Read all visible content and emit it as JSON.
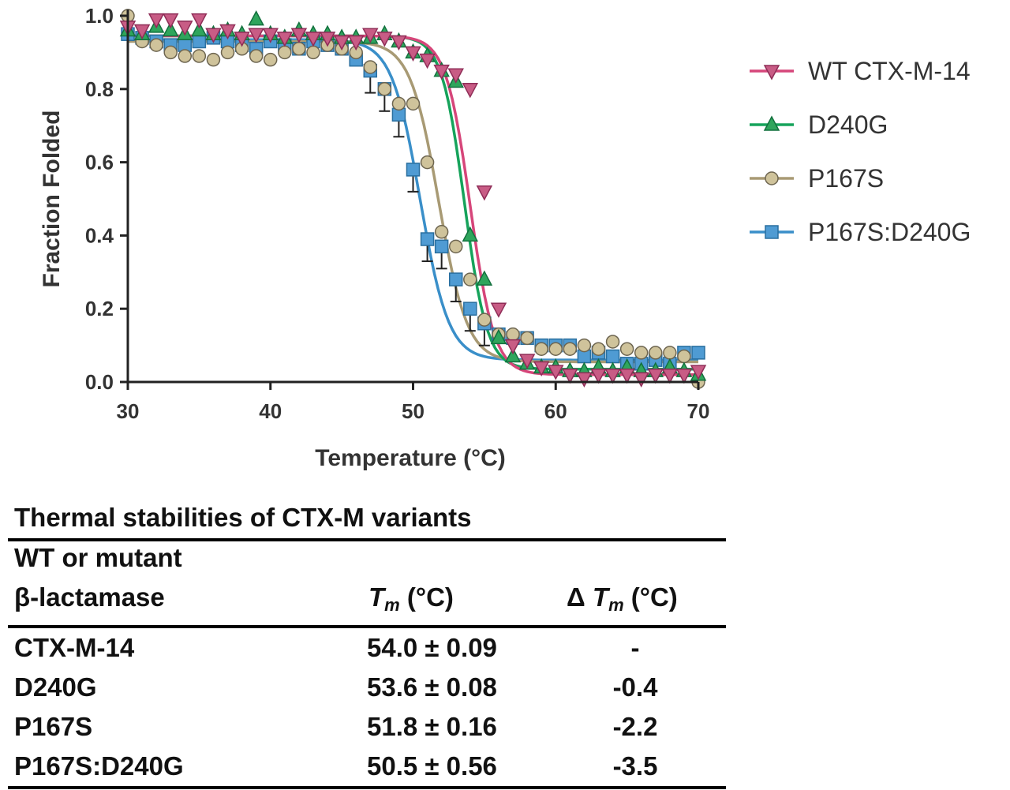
{
  "chart_data": {
    "type": "scatter",
    "xlabel": "Temperature (°C)",
    "ylabel": "Fraction Folded",
    "xlim": [
      30,
      70
    ],
    "ylim": [
      0,
      1.0
    ],
    "x_ticks": [
      "30",
      "40",
      "50",
      "60",
      "70"
    ],
    "y_ticks": [
      "0.0",
      "0.2",
      "0.4",
      "0.6",
      "0.8",
      "1.0"
    ],
    "legend_position": "right",
    "grid": false,
    "series": [
      {
        "name": "WT CTX-M-14",
        "color": "#d6467a",
        "marker": "triangle-down",
        "marker_fill": "#c85c85",
        "fit": {
          "top": 0.945,
          "bottom": 0.02,
          "tm": 54.0,
          "slope": 0.85
        },
        "x": [
          30,
          31,
          32,
          33,
          34,
          35,
          36,
          37,
          38,
          39,
          40,
          41,
          42,
          43,
          44,
          45,
          46,
          47,
          48,
          49,
          50,
          51,
          52,
          53,
          54,
          55,
          56,
          57,
          58,
          59,
          60,
          61,
          62,
          63,
          64,
          65,
          66,
          67,
          68,
          69,
          70
        ],
        "y": [
          0.97,
          0.96,
          0.99,
          0.99,
          0.97,
          0.99,
          0.95,
          0.96,
          0.94,
          0.95,
          0.95,
          0.94,
          0.95,
          0.94,
          0.94,
          0.93,
          0.93,
          0.95,
          0.94,
          0.93,
          0.9,
          0.88,
          0.85,
          0.84,
          0.8,
          0.52,
          0.2,
          0.1,
          0.06,
          0.04,
          0.03,
          0.02,
          0.01,
          0.02,
          0.02,
          0.02,
          0.01,
          0.02,
          0.02,
          0.02,
          0.03
        ]
      },
      {
        "name": "D240G",
        "color": "#16a35b",
        "marker": "triangle-up",
        "marker_fill": "#2fa55c",
        "fit": {
          "top": 0.945,
          "bottom": 0.035,
          "tm": 53.6,
          "slope": 0.8
        },
        "x": [
          30,
          31,
          32,
          33,
          34,
          35,
          36,
          37,
          38,
          39,
          40,
          41,
          42,
          43,
          44,
          45,
          46,
          47,
          48,
          49,
          50,
          51,
          52,
          53,
          54,
          55,
          56,
          57,
          58,
          59,
          60,
          61,
          62,
          63,
          64,
          65,
          66,
          67,
          68,
          69,
          70
        ],
        "y": [
          0.96,
          0.95,
          0.97,
          0.96,
          0.95,
          0.96,
          0.95,
          0.96,
          0.95,
          0.99,
          0.95,
          0.94,
          0.96,
          0.95,
          0.95,
          0.94,
          0.94,
          0.94,
          0.95,
          0.93,
          0.9,
          0.89,
          0.85,
          0.82,
          0.4,
          0.28,
          0.12,
          0.07,
          0.05,
          0.04,
          0.04,
          0.03,
          0.03,
          0.04,
          0.03,
          0.04,
          0.03,
          0.03,
          0.04,
          0.03,
          0.02
        ]
      },
      {
        "name": "P167S",
        "color": "#a89a74",
        "marker": "circle",
        "marker_fill": "#cfc39b",
        "fit": {
          "top": 0.93,
          "bottom": 0.055,
          "tm": 51.8,
          "slope": 1.0
        },
        "x": [
          30,
          31,
          32,
          33,
          34,
          35,
          36,
          37,
          38,
          39,
          40,
          41,
          42,
          43,
          44,
          45,
          46,
          47,
          48,
          49,
          50,
          51,
          52,
          53,
          54,
          55,
          56,
          57,
          58,
          59,
          60,
          61,
          62,
          63,
          64,
          65,
          66,
          67,
          68,
          69,
          70
        ],
        "y": [
          1.0,
          0.93,
          0.92,
          0.9,
          0.89,
          0.89,
          0.88,
          0.9,
          0.91,
          0.89,
          0.88,
          0.9,
          0.91,
          0.9,
          0.92,
          0.91,
          0.9,
          0.86,
          0.8,
          0.76,
          0.76,
          0.6,
          0.41,
          0.37,
          0.28,
          0.17,
          0.13,
          0.13,
          0.12,
          0.09,
          0.09,
          0.09,
          0.1,
          0.09,
          0.11,
          0.09,
          0.08,
          0.08,
          0.08,
          0.07,
          0.0
        ]
      },
      {
        "name": "P167S:D240G",
        "color": "#3a8fc9",
        "marker": "square",
        "marker_fill": "#4f9bd3",
        "fit": {
          "top": 0.935,
          "bottom": 0.06,
          "tm": 50.5,
          "slope": 1.0
        },
        "x": [
          30,
          31,
          32,
          33,
          34,
          35,
          36,
          37,
          38,
          39,
          40,
          41,
          42,
          43,
          44,
          45,
          46,
          47,
          48,
          49,
          50,
          51,
          52,
          53,
          54,
          55,
          56,
          57,
          58,
          59,
          60,
          61,
          62,
          63,
          64,
          65,
          66,
          67,
          68,
          69,
          70
        ],
        "y": [
          0.95,
          0.94,
          0.93,
          0.92,
          0.92,
          0.93,
          0.94,
          0.93,
          0.92,
          0.91,
          0.93,
          0.92,
          0.91,
          0.93,
          0.92,
          0.91,
          0.88,
          0.85,
          0.8,
          0.73,
          0.58,
          0.39,
          0.37,
          0.28,
          0.2,
          0.16,
          0.13,
          0.12,
          0.12,
          0.1,
          0.1,
          0.1,
          0.07,
          0.08,
          0.07,
          0.05,
          0.05,
          0.06,
          0.05,
          0.08,
          0.08
        ]
      }
    ]
  },
  "table": {
    "title": "Thermal stabilities of CTX-M variants",
    "header_line1": "WT or mutant",
    "header_line2": "β-lactamase",
    "col_tm_symbol": "T",
    "col_tm_sub": "m",
    "col_tm_unit": " (°C)",
    "col_dtm_delta": "Δ ",
    "col_dtm_symbol": "T",
    "col_dtm_sub": "m",
    "col_dtm_unit": " (°C)",
    "rows": [
      {
        "name": "CTX-M-14",
        "tm": "54.0 ± 0.09",
        "dtm": "-"
      },
      {
        "name": "D240G",
        "tm": "53.6 ± 0.08",
        "dtm": "-0.4"
      },
      {
        "name": "P167S",
        "tm": "51.8 ± 0.16",
        "dtm": "-2.2"
      },
      {
        "name": "P167S:D240G",
        "tm": "50.5 ± 0.56",
        "dtm": "-3.5"
      }
    ]
  }
}
